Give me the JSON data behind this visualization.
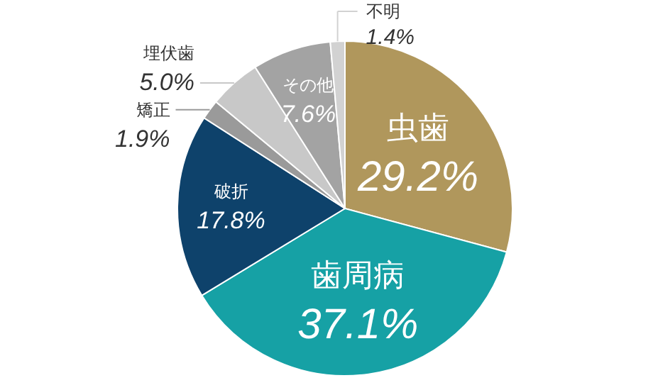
{
  "chart_data": {
    "type": "pie",
    "categories": [
      "虫歯",
      "歯周病",
      "破折",
      "矯正",
      "埋伏歯",
      "その他",
      "不明"
    ],
    "values": [
      29.2,
      37.1,
      17.8,
      1.9,
      5.0,
      7.6,
      1.4
    ],
    "value_labels": [
      "29.2%",
      "37.1%",
      "17.8%",
      "1.9%",
      "5.0%",
      "7.6%",
      "1.4%"
    ],
    "colors": [
      "#b0975c",
      "#16a1a5",
      "#0e426b",
      "#9a9a9a",
      "#c8c8c8",
      "#a3a3a3",
      "#d2d2d2"
    ]
  }
}
